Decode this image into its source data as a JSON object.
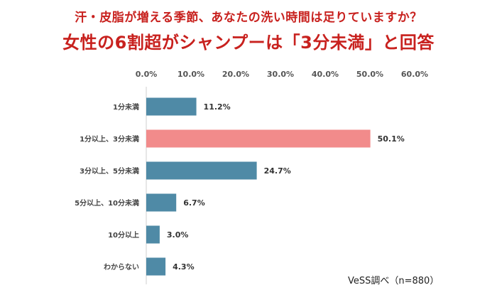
{
  "header": {
    "subtitle": "汗・皮脂が増える季節、あなたの洗い時間は足りていますか？",
    "title": "女性の6割超がシャンプーは「3分未満」と回答"
  },
  "source": "VeSS調べ（n=880）",
  "colors": {
    "title": "#c8211e",
    "bar_default": "#4f8aa6",
    "bar_highlight": "#f28b8b",
    "axis": "#cfcfcf"
  },
  "chart_data": {
    "type": "bar",
    "orientation": "horizontal",
    "categories": [
      "1分未満",
      "1分以上、3分未満",
      "3分以上、5分未満",
      "5分以上、10分未満",
      "10分以上",
      "わからない"
    ],
    "values": [
      11.2,
      50.1,
      24.7,
      6.7,
      3.0,
      4.3
    ],
    "data_labels": [
      "11.2%",
      "50.1%",
      "24.7%",
      "6.7%",
      "3.0%",
      "4.3%"
    ],
    "highlight_index": 1,
    "xlim": [
      0,
      60
    ],
    "xticks": [
      "0.0%",
      "10.0%",
      "20.0%",
      "30.0%",
      "40.0%",
      "50.0%",
      "60.0%"
    ],
    "tick_position": "top",
    "grid": false
  }
}
